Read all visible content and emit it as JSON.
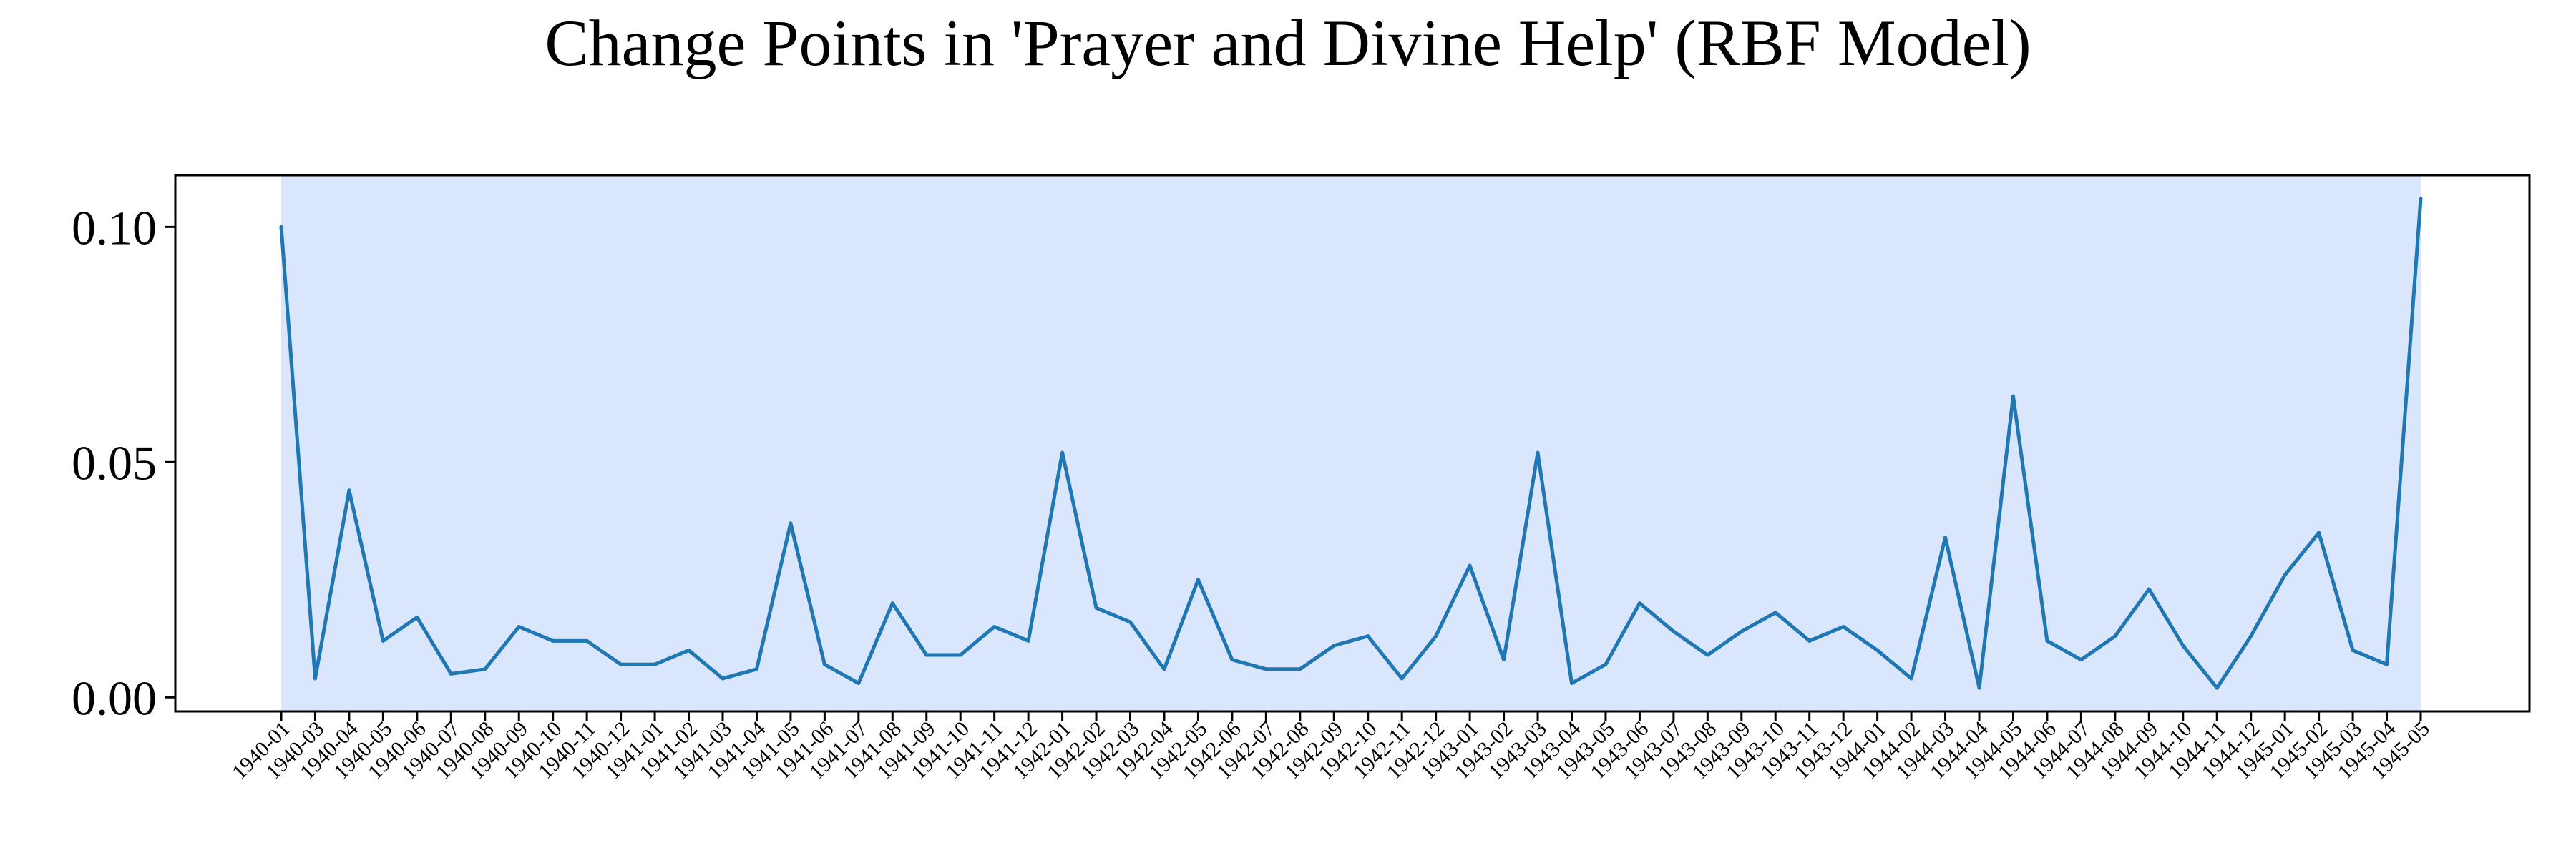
{
  "chart_data": {
    "type": "line",
    "title": "Change Points in 'Prayer and Divine Help' (RBF Model)",
    "xlabel": "",
    "ylabel": "",
    "ylim": [
      -0.003,
      0.111
    ],
    "yticks": [
      "0.00",
      "0.05",
      "0.10"
    ],
    "ytick_values": [
      0.0,
      0.05,
      0.1
    ],
    "grid": false,
    "highlight_region": {
      "from": "1940-01",
      "to": "1945-05",
      "color": "#dae6fb"
    },
    "line_color": "#1f77b4",
    "series": [
      {
        "x": [
          "1940-01",
          "1940-03",
          "1940-04",
          "1940-05",
          "1940-06",
          "1940-07",
          "1940-08",
          "1940-09",
          "1940-10",
          "1940-11",
          "1940-12",
          "1941-01",
          "1941-02",
          "1941-03",
          "1941-04",
          "1941-05",
          "1941-06",
          "1941-07",
          "1941-08",
          "1941-09",
          "1941-10",
          "1941-11",
          "1941-12",
          "1942-01",
          "1942-02",
          "1942-03",
          "1942-04",
          "1942-05",
          "1942-06",
          "1942-07",
          "1942-08",
          "1942-09",
          "1942-10",
          "1942-11",
          "1942-12",
          "1943-01",
          "1943-02",
          "1943-03",
          "1943-04",
          "1943-05",
          "1943-06",
          "1943-07",
          "1943-08",
          "1943-09",
          "1943-10",
          "1943-11",
          "1943-12",
          "1944-01",
          "1944-02",
          "1944-03",
          "1944-04",
          "1944-05",
          "1944-06",
          "1944-07",
          "1944-08",
          "1944-09",
          "1944-10",
          "1944-11",
          "1944-12",
          "1945-01",
          "1945-02",
          "1945-03",
          "1945-04",
          "1945-05"
        ],
        "values": [
          0.1,
          0.004,
          0.044,
          0.012,
          0.017,
          0.005,
          0.006,
          0.015,
          0.012,
          0.012,
          0.007,
          0.007,
          0.01,
          0.004,
          0.006,
          0.037,
          0.007,
          0.003,
          0.02,
          0.009,
          0.009,
          0.015,
          0.012,
          0.052,
          0.019,
          0.016,
          0.006,
          0.025,
          0.008,
          0.006,
          0.006,
          0.011,
          0.013,
          0.004,
          0.013,
          0.028,
          0.008,
          0.052,
          0.003,
          0.007,
          0.02,
          0.014,
          0.009,
          0.014,
          0.018,
          0.012,
          0.015,
          0.01,
          0.004,
          0.034,
          0.002,
          0.064,
          0.012,
          0.008,
          0.013,
          0.023,
          0.011,
          0.002,
          0.013,
          0.026,
          0.035,
          0.01,
          0.007,
          0.106
        ]
      }
    ]
  }
}
